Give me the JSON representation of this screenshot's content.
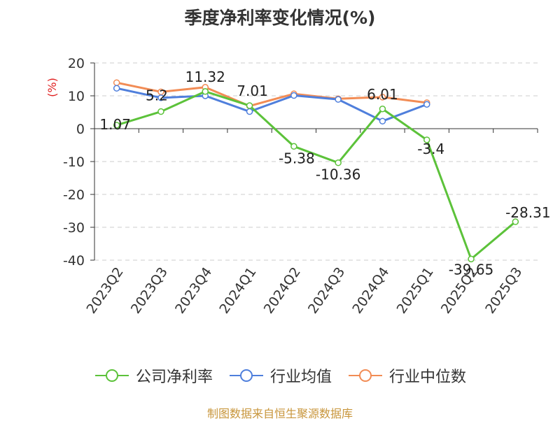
{
  "chart_data": {
    "type": "line",
    "title": "季度净利率变化情况(%)",
    "ylabel": "(%)",
    "categories": [
      "2023Q2",
      "2023Q3",
      "2023Q4",
      "2024Q1",
      "2024Q2",
      "2024Q3",
      "2024Q4",
      "2025Q1",
      "2025Q2",
      "2025Q3"
    ],
    "ylim": [
      -40,
      20
    ],
    "yticks": [
      20,
      10,
      0,
      -10,
      -20,
      -30,
      -40
    ],
    "grid": true,
    "legend_position": "bottom",
    "series": [
      {
        "name": "公司净利率",
        "color": "#5cc23a",
        "show_labels": true,
        "values": [
          1.07,
          5.2,
          11.32,
          7.01,
          -5.38,
          -10.36,
          6.01,
          -3.4,
          -39.65,
          -28.31
        ],
        "labels": [
          "1.07",
          "5.2",
          "11.32",
          "7.01",
          "-5.38",
          "-10.36",
          "6.01",
          "-3.4",
          "-39.65",
          "-28.31"
        ]
      },
      {
        "name": "行业均值",
        "color": "#4f7fdc",
        "show_labels": false,
        "values": [
          12.3,
          9.4,
          10.0,
          5.2,
          10.1,
          8.9,
          2.3,
          7.4,
          null,
          null
        ]
      },
      {
        "name": "行业中位数",
        "color": "#f28c55",
        "show_labels": false,
        "values": [
          14.0,
          11.2,
          12.6,
          6.9,
          10.6,
          9.1,
          9.6,
          7.9,
          null,
          null
        ]
      }
    ]
  },
  "footer": "制图数据来自恒生聚源数据库"
}
